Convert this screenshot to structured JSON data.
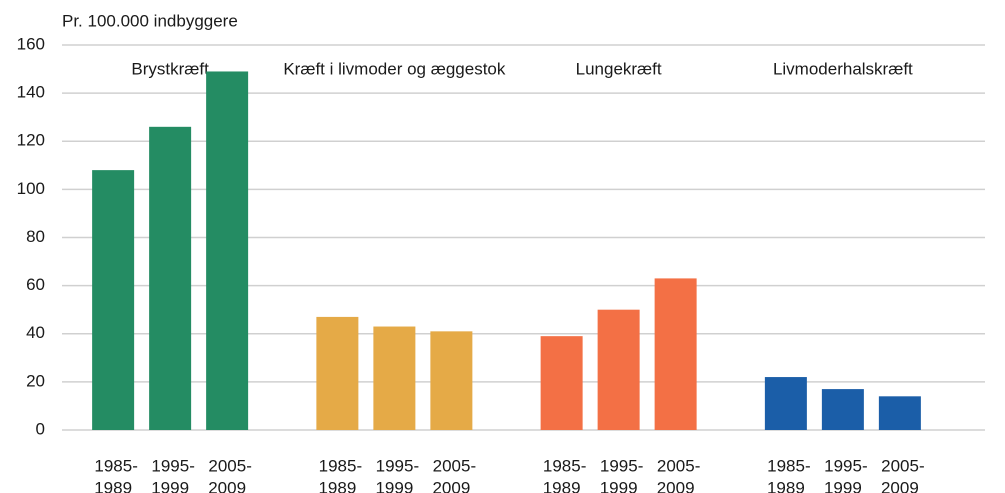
{
  "chart_data": {
    "type": "bar",
    "ylabel": "Pr. 100.000 indbyggere",
    "categories": [
      [
        "1985-",
        "1989"
      ],
      [
        "1995-",
        "1999"
      ],
      [
        "2005-",
        "2009"
      ]
    ],
    "series": [
      {
        "name": "Brystkræft",
        "color": "#248c63",
        "values": [
          108,
          126,
          149
        ]
      },
      {
        "name": "Kræft i livmoder og æggestok",
        "color": "#e5aa47",
        "values": [
          47,
          43,
          41
        ]
      },
      {
        "name": "Lungekræft",
        "color": "#f37045",
        "values": [
          39,
          50,
          63
        ]
      },
      {
        "name": "Livmoderhalskræft",
        "color": "#1b5ea8",
        "values": [
          22,
          17,
          14
        ]
      }
    ],
    "ylim": [
      0,
      160
    ],
    "yticks": [
      0,
      20,
      40,
      60,
      80,
      100,
      120,
      140,
      160
    ],
    "grid": true
  }
}
